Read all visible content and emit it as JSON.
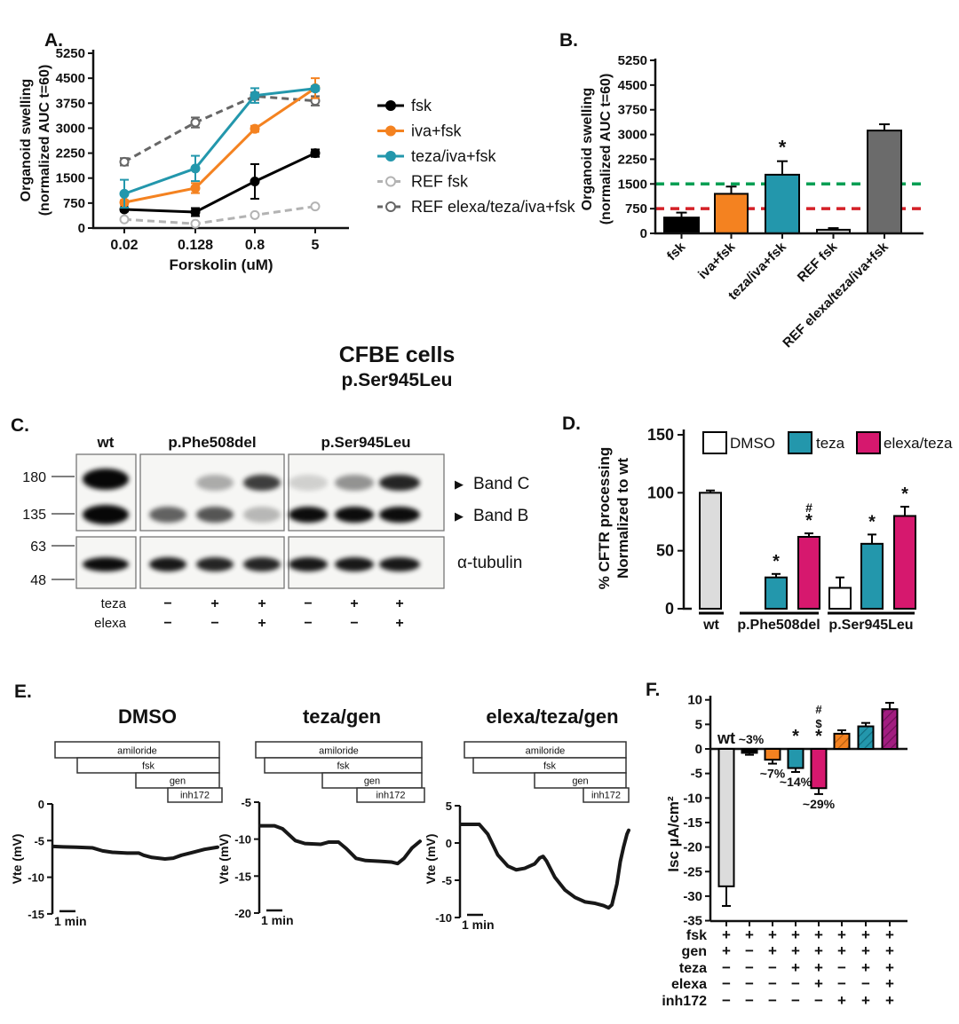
{
  "figure_title": {
    "line1": "CFBE cells",
    "line2": "p.Ser945Leu"
  },
  "panel_labels": {
    "A": "A.",
    "B": "B.",
    "C": "C.",
    "D": "D.",
    "E": "E.",
    "F": "F."
  },
  "chart_data": [
    {
      "id": "A",
      "type": "line",
      "ylabel": [
        "Organoid swelling",
        "(normalized AUC t=60)"
      ],
      "xlabel": "Forskolin (uM)",
      "ylim": [
        0,
        5250
      ],
      "yticks": [
        0,
        750,
        1500,
        2250,
        3000,
        3750,
        4500,
        5250
      ],
      "x_categories": [
        "0.02",
        "0.128",
        "0.8",
        "5"
      ],
      "legend_position": "right",
      "series": [
        {
          "name": "fsk",
          "color": "#000000",
          "style": "solid",
          "marker": "filled",
          "values": [
            560,
            480,
            1400,
            2250
          ],
          "errors": [
            60,
            120,
            520,
            110
          ]
        },
        {
          "name": "iva+fsk",
          "color": "#F48220",
          "style": "solid",
          "marker": "filled",
          "values": [
            770,
            1200,
            2980,
            4200
          ],
          "errors": [
            70,
            150,
            90,
            300
          ]
        },
        {
          "name": "teza/iva+fsk",
          "color": "#2397AC",
          "style": "solid",
          "marker": "filled",
          "values": [
            1030,
            1790,
            3980,
            4190
          ],
          "errors": [
            420,
            380,
            220,
            70
          ]
        },
        {
          "name": "REF fsk",
          "color": "#B3B3B3",
          "style": "dashed",
          "marker": "open",
          "values": [
            260,
            130,
            390,
            650
          ],
          "errors": [
            0,
            0,
            0,
            0
          ]
        },
        {
          "name": "REF elexa/teza/iva+fsk",
          "color": "#666666",
          "style": "dashed",
          "marker": "open",
          "values": [
            1990,
            3170,
            3960,
            3820
          ],
          "errors": [
            110,
            150,
            110,
            140
          ]
        }
      ]
    },
    {
      "id": "B",
      "type": "bar",
      "ylabel": [
        "Organoid swelling",
        "(normalized AUC t=60)"
      ],
      "ylim": [
        0,
        5250
      ],
      "yticks": [
        0,
        750,
        1500,
        2250,
        3000,
        3750,
        4500,
        5250
      ],
      "categories": [
        "fsk",
        "iva+fsk",
        "teza/iva+fsk",
        "REF fsk",
        "REF elexa/teza/iva+fsk"
      ],
      "values": [
        480,
        1200,
        1780,
        110,
        3120
      ],
      "errors": [
        150,
        220,
        410,
        50,
        190
      ],
      "bar_colors": [
        "#000000",
        "#F48220",
        "#2397AC",
        "#C9C9C9",
        "#6B6B6B"
      ],
      "significance": [
        {
          "bar_index": 2,
          "symbol": "*"
        }
      ],
      "reference_lines": [
        {
          "value": 1500,
          "color": "#009E53",
          "style": "dashed"
        },
        {
          "value": 750,
          "color": "#D42027",
          "style": "dashed"
        }
      ]
    },
    {
      "id": "D",
      "type": "bar",
      "ylabel": [
        "% CFTR processing",
        "Normalized to wt"
      ],
      "ylim": [
        0,
        150
      ],
      "yticks": [
        0,
        50,
        100,
        150
      ],
      "legend": [
        {
          "label": "DMSO",
          "color": "#FFFFFF"
        },
        {
          "label": "teza",
          "color": "#2397AC"
        },
        {
          "label": "elexa/teza",
          "color": "#D6186E"
        }
      ],
      "groups": [
        {
          "label": "wt",
          "bars": [
            {
              "value": 100,
              "error": 2,
              "color": "#DCDCDC",
              "sig": []
            }
          ]
        },
        {
          "label": "p.Phe508del",
          "bars": [
            {
              "value": 27,
              "error": 3,
              "color": "#2397AC",
              "sig": [
                "*"
              ]
            },
            {
              "value": 62,
              "error": 3,
              "color": "#D6186E",
              "sig": [
                "#",
                "*"
              ]
            }
          ]
        },
        {
          "label": "p.Ser945Leu",
          "bars": [
            {
              "value": 18,
              "error": 9,
              "color": "#FFFFFF",
              "sig": []
            },
            {
              "value": 56,
              "error": 8,
              "color": "#2397AC",
              "sig": [
                "*"
              ]
            },
            {
              "value": 80,
              "error": 8,
              "color": "#D6186E",
              "sig": [
                "*"
              ]
            }
          ]
        }
      ]
    },
    {
      "id": "E",
      "type": "line",
      "traces": [
        {
          "title": "DMSO",
          "ylabel": "Vte (mV)",
          "yticks": [
            0,
            -5,
            -10,
            -15
          ],
          "scalebar": "1 min",
          "drug_bars": [
            "amiloride",
            "fsk",
            "gen",
            "inh172"
          ],
          "points": [
            [
              0,
              -5.8
            ],
            [
              6,
              -5.85
            ],
            [
              14,
              -5.9
            ],
            [
              24,
              -6.0
            ],
            [
              30,
              -6.4
            ],
            [
              36,
              -6.6
            ],
            [
              45,
              -6.7
            ],
            [
              52,
              -6.7
            ],
            [
              55,
              -7.0
            ],
            [
              60,
              -7.3
            ],
            [
              68,
              -7.5
            ],
            [
              73,
              -7.4
            ],
            [
              78,
              -7.0
            ],
            [
              85,
              -6.6
            ],
            [
              92,
              -6.2
            ],
            [
              100,
              -5.9
            ]
          ]
        },
        {
          "title": "teza/gen",
          "ylabel": "Vte (mV)",
          "yticks": [
            -5,
            -10,
            -15,
            -20
          ],
          "scalebar": "1 min",
          "drug_bars": [
            "amiloride",
            "fsk",
            "gen",
            "inh172"
          ],
          "points": [
            [
              0,
              -8.2
            ],
            [
              9,
              -8.2
            ],
            [
              14,
              -8.6
            ],
            [
              22,
              -10.2
            ],
            [
              28,
              -10.6
            ],
            [
              38,
              -10.7
            ],
            [
              43,
              -10.4
            ],
            [
              49,
              -10.4
            ],
            [
              54,
              -11.3
            ],
            [
              60,
              -12.6
            ],
            [
              66,
              -12.9
            ],
            [
              75,
              -13.0
            ],
            [
              82,
              -13.1
            ],
            [
              86,
              -13.3
            ],
            [
              90,
              -12.6
            ],
            [
              95,
              -11.2
            ],
            [
              100,
              -10.3
            ]
          ]
        },
        {
          "title": "elexa/teza/gen",
          "ylabel": "Vte (mV)",
          "yticks": [
            5,
            0,
            -5,
            -10
          ],
          "scalebar": "1 min",
          "drug_bars": [
            "amiloride",
            "fsk",
            "gen",
            "inh172"
          ],
          "points": [
            [
              0,
              2.5
            ],
            [
              11,
              2.5
            ],
            [
              16,
              1.2
            ],
            [
              22,
              -1.6
            ],
            [
              28,
              -3.1
            ],
            [
              33,
              -3.6
            ],
            [
              38,
              -3.4
            ],
            [
              44,
              -2.8
            ],
            [
              47,
              -2.0
            ],
            [
              49,
              -1.8
            ],
            [
              51,
              -2.4
            ],
            [
              56,
              -4.6
            ],
            [
              62,
              -6.3
            ],
            [
              68,
              -7.3
            ],
            [
              74,
              -7.9
            ],
            [
              80,
              -8.1
            ],
            [
              85,
              -8.4
            ],
            [
              88,
              -8.7
            ],
            [
              90,
              -8.3
            ],
            [
              93,
              -5.5
            ],
            [
              95,
              -2.5
            ],
            [
              97,
              -0.5
            ],
            [
              99,
              1.2
            ],
            [
              100,
              1.7
            ]
          ]
        }
      ]
    },
    {
      "id": "F",
      "type": "bar",
      "ylabel": "Isc µA/cm²",
      "ylim": [
        -35,
        10
      ],
      "yticks": [
        10,
        5,
        0,
        -5,
        -10,
        -15,
        -20,
        -25,
        -30,
        -35
      ],
      "bars": [
        {
          "value": -28,
          "error": 4,
          "color": "#DCDCDC",
          "hatched": false,
          "label_above": "wt"
        },
        {
          "value": -0.8,
          "error": 0.4,
          "color": "#000000",
          "hatched": false,
          "label_above": "~3%"
        },
        {
          "value": -2.2,
          "error": 0.8,
          "color": "#F48220",
          "hatched": false,
          "label_below": "~7%"
        },
        {
          "value": -3.9,
          "error": 0.8,
          "color": "#2397AC",
          "hatched": false,
          "label_below": "~14%",
          "sig": [
            "*"
          ]
        },
        {
          "value": -8,
          "error": 1.2,
          "color": "#D6186E",
          "hatched": false,
          "label_below": "~29%",
          "sig": [
            "#",
            "$",
            "*"
          ]
        },
        {
          "value": 3.1,
          "error": 0.7,
          "color": "#F48220",
          "hatched": true
        },
        {
          "value": 4.6,
          "error": 0.7,
          "color": "#2397AC",
          "hatched": true
        },
        {
          "value": 8.1,
          "error": 1.3,
          "color": "#A21D80",
          "hatched": true
        }
      ],
      "condition_matrix": {
        "row_labels": [
          "fsk",
          "gen",
          "teza",
          "elexa",
          "inh172"
        ],
        "rows": [
          [
            "+",
            "+",
            "+",
            "+",
            "+",
            "+",
            "+",
            "+"
          ],
          [
            "+",
            "−",
            "+",
            "+",
            "+",
            "+",
            "+",
            "+"
          ],
          [
            "−",
            "−",
            "−",
            "+",
            "+",
            "−",
            "+",
            "+"
          ],
          [
            "−",
            "−",
            "−",
            "−",
            "+",
            "−",
            "−",
            "+"
          ],
          [
            "−",
            "−",
            "−",
            "−",
            "−",
            "+",
            "+",
            "+"
          ]
        ]
      }
    }
  ],
  "blot": {
    "panel": "C",
    "group_labels": [
      "wt",
      "p.Phe508del",
      "p.Ser945Leu"
    ],
    "mw_markers": [
      "180",
      "135",
      "63",
      "48"
    ],
    "band_labels": [
      "Band C",
      "Band B"
    ],
    "loading_control_label": "α-tubulin",
    "arrow_icon": "▶",
    "condition_rows": [
      {
        "label": "teza",
        "values": [
          "−",
          "+",
          "+",
          "−",
          "+",
          "+"
        ]
      },
      {
        "label": "elexa",
        "values": [
          "−",
          "−",
          "+",
          "−",
          "−",
          "+"
        ]
      }
    ],
    "lanes": [
      {
        "group": "wt",
        "band_c": 0.97,
        "band_b": 0.97,
        "tubulin": 0.95
      },
      {
        "group": "p.Phe508del",
        "band_c": 0.0,
        "band_b": 0.6,
        "tubulin": 0.9
      },
      {
        "group": "p.Phe508del",
        "band_c": 0.3,
        "band_b": 0.65,
        "tubulin": 0.85
      },
      {
        "group": "p.Phe508del",
        "band_c": 0.75,
        "band_b": 0.25,
        "tubulin": 0.85
      },
      {
        "group": "p.Ser945Leu",
        "band_c": 0.15,
        "band_b": 0.95,
        "tubulin": 0.9
      },
      {
        "group": "p.Ser945Leu",
        "band_c": 0.4,
        "band_b": 0.95,
        "tubulin": 0.9
      },
      {
        "group": "p.Ser945Leu",
        "band_c": 0.85,
        "band_b": 0.95,
        "tubulin": 0.9
      }
    ]
  }
}
